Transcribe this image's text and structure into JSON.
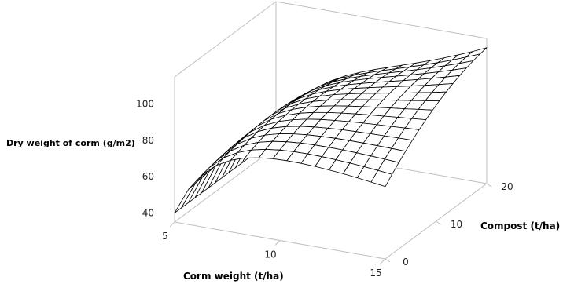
{
  "chart_data": {
    "type": "surface",
    "title": "",
    "xlabel": "Corm weight (t/ha)",
    "ylabel": "Compost (t/ha)",
    "zlabel": "Dry weight of corm (g/m2)",
    "x_ticks": [
      "5",
      "10",
      "15"
    ],
    "y_ticks": [
      "0",
      "10",
      "20"
    ],
    "z_ticks": [
      "40",
      "60",
      "80",
      "100"
    ],
    "xlim": [
      5,
      15
    ],
    "ylim": [
      0,
      20
    ],
    "zlim": [
      35,
      115
    ],
    "grid_size": 15,
    "surface": {
      "model": "response surface (quadratic in corm weight x compost)",
      "approx_corners": {
        "x5_y0": 40,
        "x5_y20": 40,
        "x15_y0": 93,
        "x15_y20": 104
      },
      "approx_max": 113
    }
  }
}
